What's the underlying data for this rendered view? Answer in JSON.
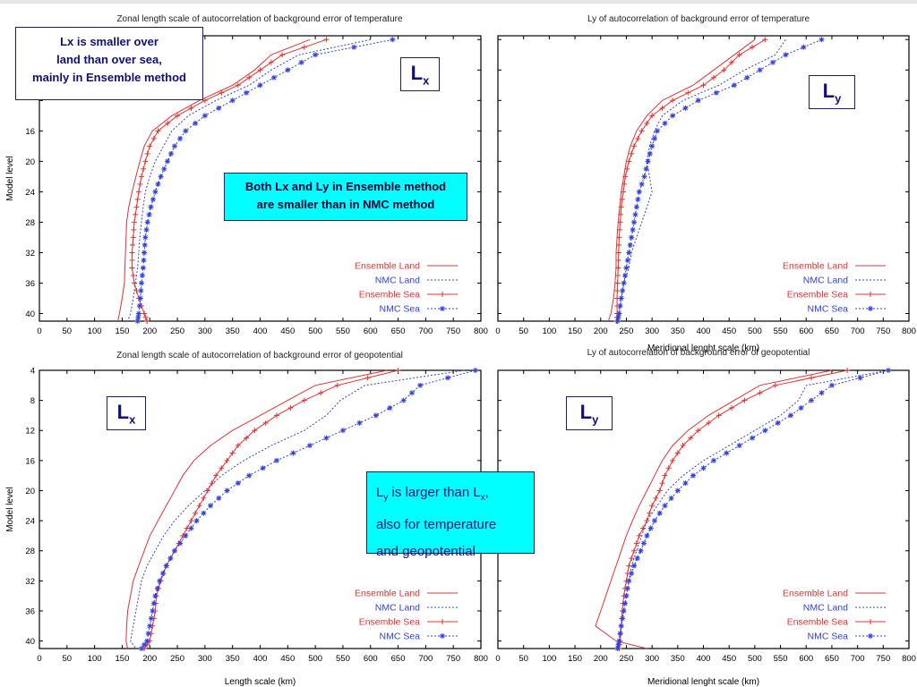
{
  "chart_data": [
    {
      "type": "line",
      "title": "Zonal length scale of autocorrelation of background error of temperature",
      "xlabel": "",
      "ylabel": "Model level",
      "xlim": [
        0,
        800
      ],
      "ylim": [
        41,
        3.5
      ],
      "xticks": [
        "0",
        "50",
        "100",
        "150",
        "200",
        "250",
        "300",
        "350",
        "400",
        "450",
        "500",
        "550",
        "600",
        "650",
        "700",
        "750",
        "800"
      ],
      "yticks": [
        "16",
        "20",
        "24",
        "28",
        "32",
        "36",
        "40"
      ],
      "series": [
        {
          "name": "Ensemble Land",
          "levels": [
            4,
            6,
            8,
            10,
            12,
            14,
            16,
            18,
            20,
            22,
            24,
            26,
            28,
            30,
            32,
            34,
            36,
            38,
            40,
            41
          ],
          "values": [
            490,
            420,
            390,
            350,
            290,
            240,
            205,
            190,
            182,
            175,
            168,
            162,
            158,
            157,
            156,
            155,
            154,
            150,
            145,
            142
          ]
        },
        {
          "name": "NMC Land",
          "levels": [
            4,
            6,
            8,
            10,
            12,
            14,
            16,
            18,
            20,
            22,
            24,
            26,
            28,
            30,
            32,
            34,
            36,
            38,
            40,
            41
          ],
          "values": [
            600,
            470,
            420,
            380,
            320,
            270,
            240,
            225,
            210,
            200,
            192,
            188,
            185,
            182,
            180,
            178,
            174,
            170,
            165,
            160
          ]
        },
        {
          "name": "Ensemble Sea",
          "levels": [
            4,
            6,
            8,
            10,
            12,
            14,
            16,
            18,
            20,
            22,
            24,
            26,
            28,
            30,
            32,
            34,
            36,
            38,
            40,
            41
          ],
          "values": [
            520,
            440,
            400,
            360,
            300,
            250,
            215,
            200,
            192,
            185,
            180,
            176,
            172,
            170,
            168,
            168,
            172,
            180,
            190,
            195
          ]
        },
        {
          "name": "NMC Sea",
          "levels": [
            4,
            6,
            8,
            10,
            12,
            14,
            16,
            18,
            20,
            22,
            24,
            26,
            28,
            30,
            32,
            34,
            36,
            38,
            40,
            41
          ],
          "values": [
            640,
            500,
            450,
            400,
            350,
            300,
            265,
            245,
            232,
            220,
            210,
            202,
            196,
            192,
            190,
            188,
            185,
            183,
            180,
            178
          ]
        }
      ]
    },
    {
      "type": "line",
      "title": "Ly of autocorrelation of background error of temperature",
      "xlabel": "Meridional lenght scale (km)",
      "ylabel": "",
      "xlim": [
        0,
        800
      ],
      "ylim": [
        41,
        3.5
      ],
      "xticks": [
        "0",
        "50",
        "100",
        "150",
        "200",
        "250",
        "300",
        "350",
        "400",
        "450",
        "500",
        "550",
        "600",
        "650",
        "700",
        "750",
        "800"
      ],
      "series": [
        {
          "name": "Ensemble Land",
          "levels": [
            4,
            6,
            8,
            10,
            12,
            14,
            16,
            18,
            20,
            22,
            24,
            26,
            28,
            30,
            32,
            34,
            36,
            38,
            40,
            41
          ],
          "values": [
            500,
            460,
            420,
            380,
            320,
            290,
            270,
            258,
            250,
            245,
            240,
            237,
            234,
            232,
            230,
            230,
            228,
            225,
            220,
            215
          ]
        },
        {
          "name": "NMC Land",
          "levels": [
            4,
            6,
            8,
            10,
            12,
            14,
            16,
            18,
            20,
            22,
            24,
            26,
            28,
            30,
            32,
            34,
            36,
            38,
            40,
            41
          ],
          "values": [
            560,
            540,
            480,
            430,
            360,
            320,
            305,
            295,
            290,
            295,
            300,
            290,
            280,
            270,
            260,
            255,
            245,
            240,
            235,
            232
          ]
        },
        {
          "name": "Ensemble Sea",
          "levels": [
            4,
            6,
            8,
            10,
            12,
            14,
            16,
            18,
            20,
            22,
            24,
            26,
            28,
            30,
            32,
            34,
            36,
            38,
            40,
            41
          ],
          "values": [
            520,
            470,
            440,
            400,
            340,
            300,
            280,
            265,
            255,
            248,
            244,
            240,
            238,
            236,
            235,
            234,
            233,
            232,
            232,
            231
          ]
        },
        {
          "name": "NMC Sea",
          "levels": [
            4,
            6,
            8,
            10,
            12,
            14,
            16,
            18,
            20,
            22,
            24,
            26,
            28,
            30,
            32,
            34,
            36,
            38,
            40,
            41
          ],
          "values": [
            630,
            560,
            510,
            460,
            390,
            340,
            310,
            300,
            292,
            285,
            275,
            270,
            265,
            260,
            255,
            250,
            245,
            240,
            236,
            233
          ]
        }
      ]
    },
    {
      "type": "line",
      "title": "Zonal length scale of autocorrelation of background error of geopotential",
      "xlabel": "Length scale (km)",
      "ylabel": "Model level",
      "xlim": [
        0,
        800
      ],
      "ylim": [
        41,
        4
      ],
      "xticks": [
        "0",
        "50",
        "100",
        "150",
        "200",
        "250",
        "300",
        "350",
        "400",
        "450",
        "500",
        "550",
        "600",
        "650",
        "700",
        "750",
        "800"
      ],
      "yticks": [
        "4",
        "8",
        "12",
        "16",
        "20",
        "24",
        "28",
        "32",
        "36",
        "40"
      ],
      "series": [
        {
          "name": "Ensemble Land",
          "levels": [
            4,
            6,
            8,
            10,
            12,
            14,
            16,
            18,
            20,
            22,
            24,
            26,
            28,
            30,
            32,
            34,
            36,
            38,
            40,
            41
          ],
          "values": [
            630,
            500,
            450,
            400,
            350,
            310,
            280,
            260,
            245,
            230,
            215,
            200,
            190,
            180,
            170,
            165,
            160,
            158,
            157,
            160
          ]
        },
        {
          "name": "NMC Land",
          "levels": [
            4,
            6,
            8,
            10,
            12,
            14,
            16,
            18,
            20,
            22,
            24,
            26,
            28,
            30,
            32,
            34,
            36,
            38,
            40,
            41
          ],
          "values": [
            770,
            590,
            545,
            520,
            480,
            420,
            370,
            330,
            300,
            270,
            245,
            225,
            210,
            195,
            185,
            180,
            175,
            170,
            165,
            175
          ]
        },
        {
          "name": "Ensemble Sea",
          "levels": [
            4,
            6,
            8,
            10,
            12,
            14,
            16,
            18,
            20,
            22,
            24,
            26,
            28,
            30,
            32,
            34,
            36,
            38,
            40,
            41
          ],
          "values": [
            650,
            540,
            480,
            430,
            390,
            360,
            340,
            320,
            305,
            290,
            275,
            260,
            245,
            230,
            220,
            212,
            210,
            205,
            200,
            190
          ]
        },
        {
          "name": "NMC Sea",
          "levels": [
            4,
            6,
            8,
            10,
            12,
            14,
            16,
            18,
            20,
            22,
            24,
            26,
            28,
            30,
            32,
            34,
            36,
            38,
            40,
            41
          ],
          "values": [
            790,
            690,
            660,
            610,
            550,
            490,
            430,
            380,
            340,
            310,
            285,
            265,
            245,
            230,
            218,
            210,
            205,
            200,
            195,
            185
          ]
        }
      ]
    },
    {
      "type": "line",
      "title": "Ly of autocorrelation of background error of geopotential",
      "xlabel": "Meridional lenght scale (km)",
      "ylabel": "",
      "xlim": [
        0,
        800
      ],
      "ylim": [
        41,
        4
      ],
      "xticks": [
        "0",
        "50",
        "100",
        "150",
        "200",
        "250",
        "300",
        "350",
        "400",
        "450",
        "500",
        "550",
        "600",
        "650",
        "700",
        "750",
        "800"
      ],
      "series": [
        {
          "name": "Ensemble Land",
          "levels": [
            4,
            6,
            8,
            10,
            12,
            14,
            16,
            18,
            20,
            22,
            24,
            26,
            28,
            30,
            32,
            34,
            36,
            38,
            40,
            41
          ],
          "values": [
            650,
            510,
            460,
            410,
            370,
            340,
            320,
            305,
            290,
            275,
            262,
            250,
            240,
            230,
            220,
            210,
            200,
            190,
            230,
            290
          ]
        },
        {
          "name": "NMC Land",
          "levels": [
            4,
            6,
            8,
            10,
            12,
            14,
            16,
            18,
            20,
            22,
            24,
            26,
            28,
            30,
            32,
            34,
            36,
            38,
            40,
            41
          ],
          "values": [
            760,
            600,
            585,
            550,
            500,
            450,
            400,
            360,
            330,
            310,
            290,
            280,
            270,
            260,
            255,
            250,
            245,
            240,
            235,
            232
          ]
        },
        {
          "name": "Ensemble Sea",
          "levels": [
            4,
            6,
            8,
            10,
            12,
            14,
            16,
            18,
            20,
            22,
            24,
            26,
            28,
            30,
            32,
            34,
            36,
            38,
            40,
            41
          ],
          "values": [
            680,
            540,
            480,
            430,
            390,
            360,
            340,
            325,
            315,
            300,
            290,
            275,
            265,
            255,
            250,
            245,
            242,
            240,
            238,
            236
          ]
        },
        {
          "name": "NMC Sea",
          "levels": [
            4,
            6,
            8,
            10,
            12,
            14,
            16,
            18,
            20,
            22,
            24,
            26,
            28,
            30,
            32,
            34,
            36,
            38,
            40,
            41
          ],
          "values": [
            760,
            650,
            610,
            570,
            520,
            470,
            420,
            380,
            350,
            325,
            305,
            290,
            278,
            265,
            255,
            250,
            245,
            240,
            236,
            233
          ]
        }
      ]
    }
  ],
  "legend": [
    "Ensemble Land",
    "NMC Land",
    "Ensemble Sea",
    "NMC Sea"
  ],
  "colors": {
    "ensemble": "#e83030",
    "nmc": "#3040e0"
  },
  "notes": {
    "lx_land_line1": "Lx is smaller over",
    "lx_land_line2": "land than over sea,",
    "lx_land_line3": "mainly in Ensemble method",
    "both_line1": "Both Lx and Ly in Ensemble method",
    "both_line2": "are smaller than in NMC method",
    "lylarger_L": "L",
    "lylarger_y": "y",
    "lylarger_mid": " is larger than L",
    "lylarger_x": "x",
    "lylarger_end": ",",
    "lylarger_line2": "also for temperature",
    "lylarger_line3": "and geopotential"
  },
  "labels": {
    "L": "L",
    "x": "x",
    "y": "y"
  }
}
